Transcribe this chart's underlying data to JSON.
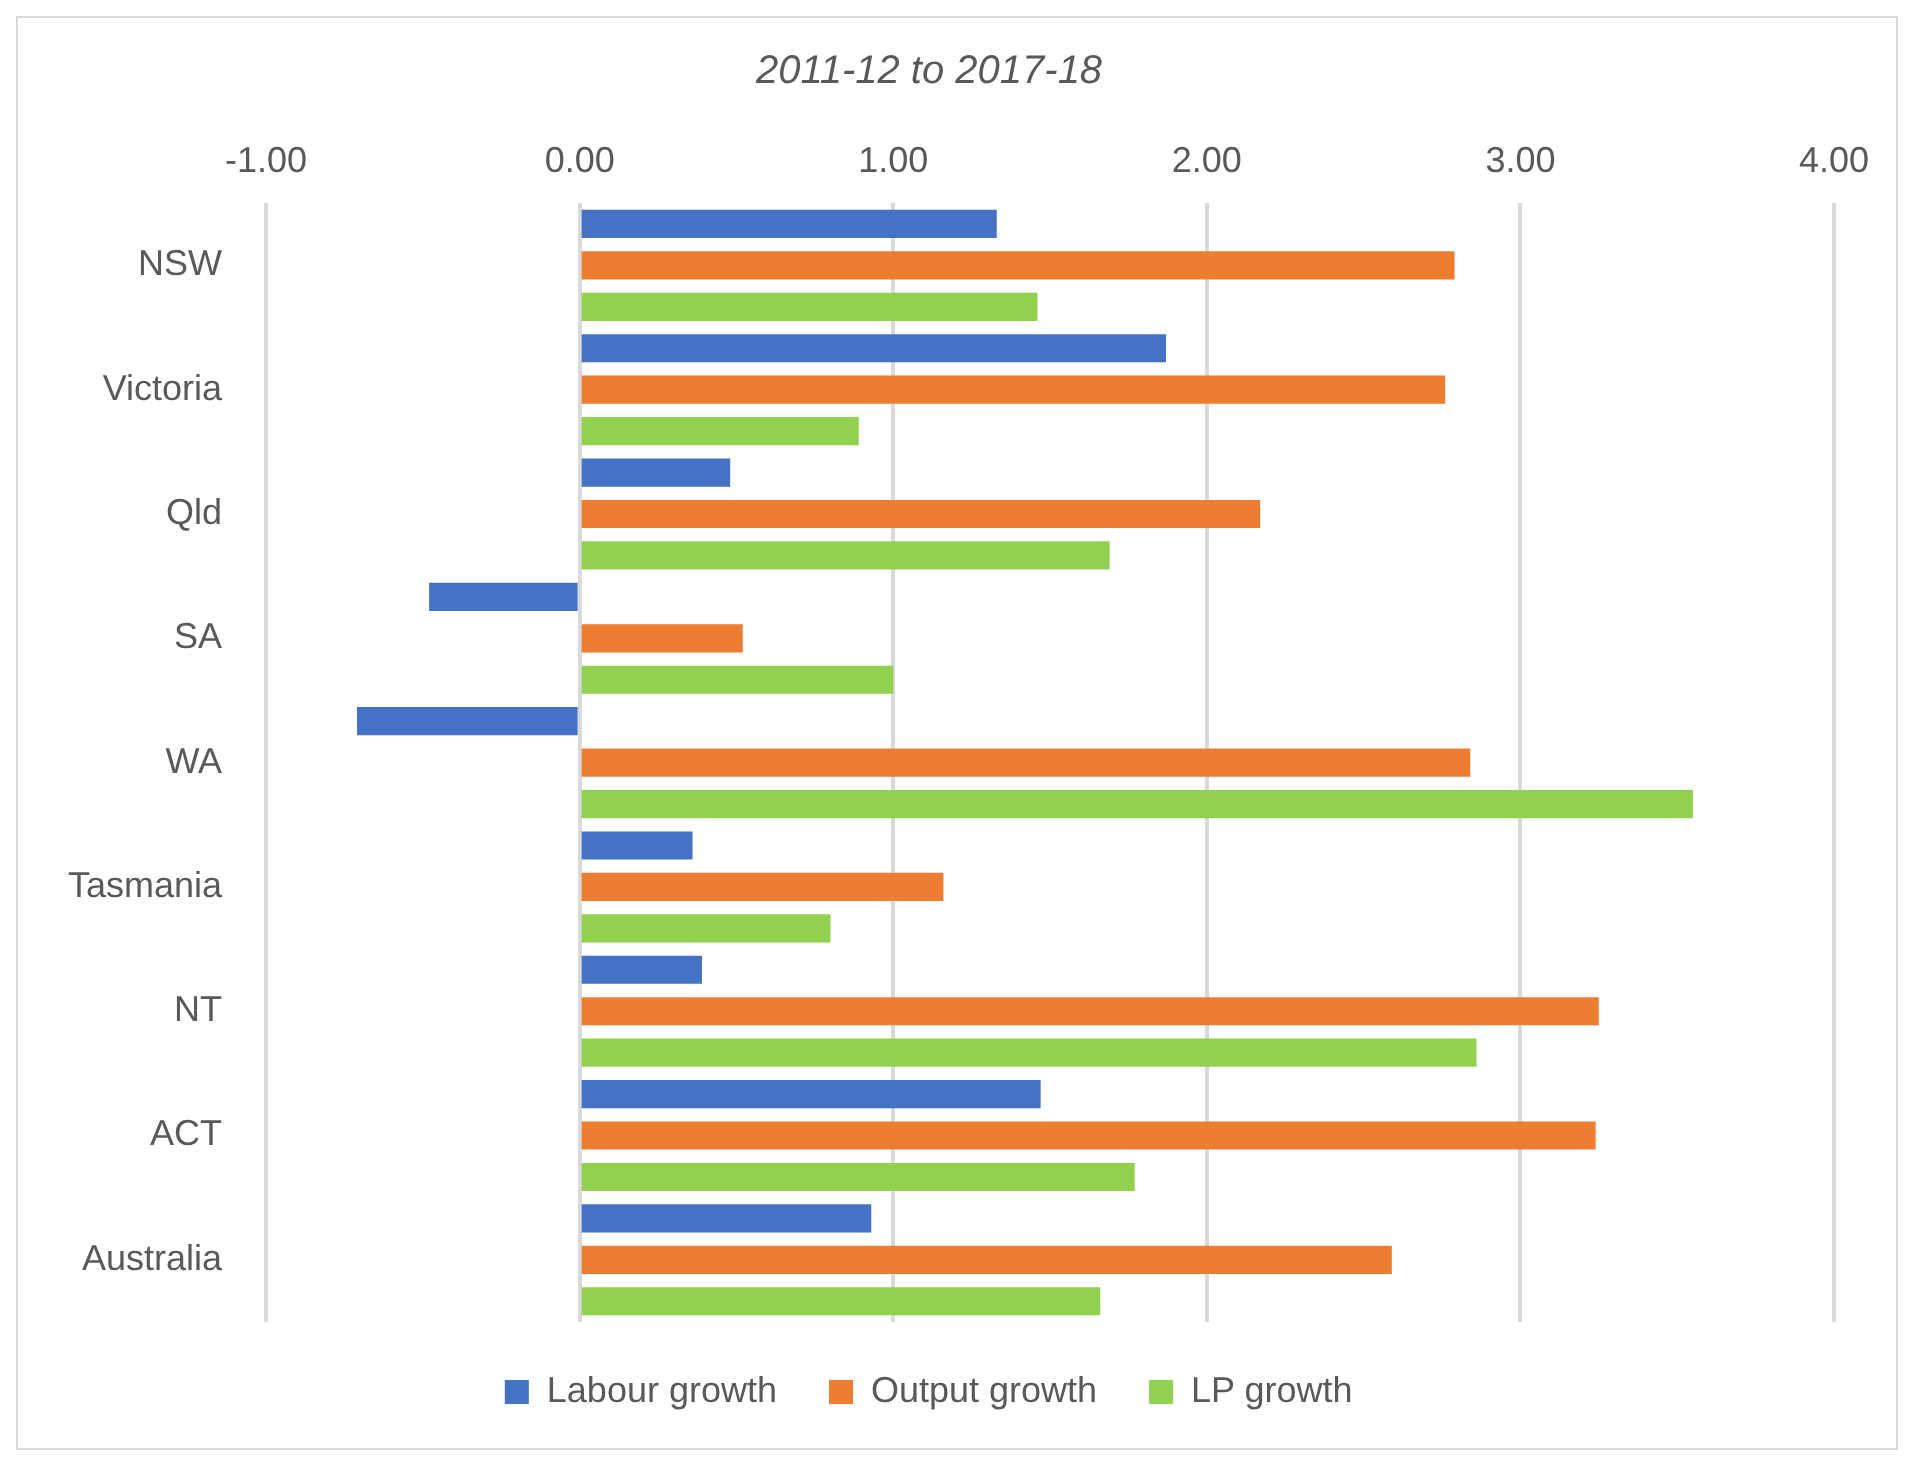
{
  "chart_data": {
    "type": "bar",
    "orientation": "horizontal",
    "title": "2011-12 to 2017-18",
    "categories": [
      "NSW",
      "Victoria",
      "Qld",
      "SA",
      "WA",
      "Tasmania",
      "NT",
      "ACT",
      "Australia"
    ],
    "series": [
      {
        "name": "Labour growth",
        "color": "#4472c4",
        "values": [
          1.33,
          1.87,
          0.48,
          -0.48,
          -0.71,
          0.36,
          0.39,
          1.47,
          0.93
        ]
      },
      {
        "name": "Output growth",
        "color": "#ed7d31",
        "values": [
          2.79,
          2.76,
          2.17,
          0.52,
          2.84,
          1.16,
          3.25,
          3.24,
          2.59
        ]
      },
      {
        "name": "LP growth",
        "color": "#92d050",
        "values": [
          1.46,
          0.89,
          1.69,
          1.0,
          3.55,
          0.8,
          2.86,
          1.77,
          1.66
        ]
      }
    ],
    "xlim": [
      -1,
      4
    ],
    "xticks": [
      {
        "value": -1,
        "label": "-1.00"
      },
      {
        "value": 0,
        "label": "0.00"
      },
      {
        "value": 1,
        "label": "1.00"
      },
      {
        "value": 2,
        "label": "2.00"
      },
      {
        "value": 3,
        "label": "3.00"
      },
      {
        "value": 4,
        "label": "4.00"
      }
    ],
    "grid": "x",
    "legend": "bottom"
  }
}
